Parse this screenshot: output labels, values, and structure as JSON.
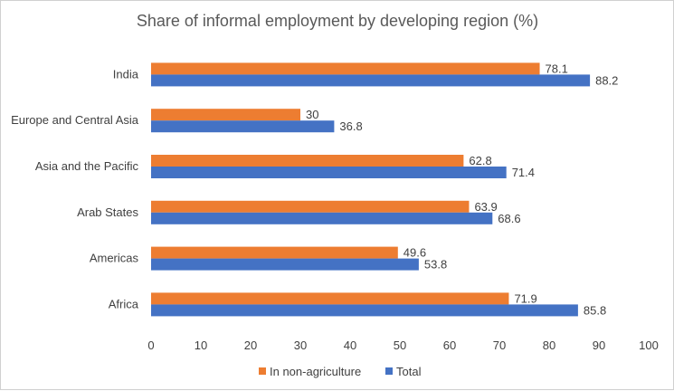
{
  "chart_data": {
    "type": "bar",
    "orientation": "horizontal",
    "title": "Share of informal employment by developing region  (%)",
    "xlabel": "",
    "ylabel": "",
    "categories": [
      "India",
      "Europe and Central Asia",
      "Asia and the Pacific",
      "Arab States",
      "Americas",
      "Africa"
    ],
    "series": [
      {
        "name": "In non-agriculture",
        "color": "#ED7D31",
        "values": [
          78.1,
          30,
          62.8,
          63.9,
          49.6,
          71.9
        ]
      },
      {
        "name": "Total",
        "color": "#4472C4",
        "values": [
          88.2,
          36.8,
          71.4,
          68.6,
          53.8,
          85.8
        ]
      }
    ],
    "xlim": [
      0,
      100
    ],
    "xticks": [
      0,
      10,
      20,
      30,
      40,
      50,
      60,
      70,
      80,
      90,
      100
    ],
    "grid": false,
    "legend_position": "bottom",
    "data_labels": true
  }
}
